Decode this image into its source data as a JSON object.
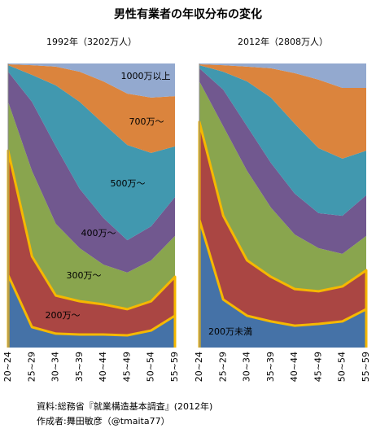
{
  "title": "男性有業者の年収分布の変化",
  "chart_data": [
    {
      "type": "area",
      "stacked": true,
      "title": "1992年（3202万人）",
      "categories": [
        "20~24",
        "25~29",
        "30~34",
        "35~39",
        "40~44",
        "45~49",
        "50~54",
        "55~59"
      ],
      "ylim": [
        0,
        100
      ],
      "series": [
        {
          "color": "#4572a7",
          "outline": "#f5b800",
          "values": [
            25.5,
            7.2,
            4.9,
            4.6,
            4.6,
            4.3,
            6.0,
            11.2
          ]
        },
        {
          "name": "200万～",
          "color": "#aa4643",
          "outline": "#f5b800",
          "values": [
            43.8,
            24.9,
            13.4,
            11.7,
            10.6,
            9.2,
            10.3,
            13.7
          ]
        },
        {
          "name": "300万～",
          "color": "#89a54e",
          "values": [
            17.2,
            30.1,
            25.3,
            18.7,
            14.0,
            12.9,
            14.4,
            14.4
          ]
        },
        {
          "name": "400万～",
          "color": "#71588f",
          "values": [
            10.6,
            24.3,
            27.2,
            20.9,
            16.4,
            11.4,
            12.0,
            13.7
          ]
        },
        {
          "name": "500万～",
          "color": "#4198af",
          "values": [
            2.3,
            9.5,
            21.5,
            30.6,
            33.2,
            33.5,
            25.8,
            17.8
          ]
        },
        {
          "name": "700万～",
          "color": "#db843d",
          "values": [
            0.3,
            3.4,
            6.6,
            10.6,
            14.9,
            18.1,
            19.5,
            17.7
          ]
        },
        {
          "name": "1000万以上",
          "color": "#93a9cf",
          "values": [
            0.3,
            0.6,
            1.1,
            2.9,
            6.3,
            10.6,
            12.0,
            11.5
          ]
        }
      ]
    },
    {
      "type": "area",
      "stacked": true,
      "title": "2012年（2808万人）",
      "categories": [
        "20~24",
        "25~29",
        "30~34",
        "35~39",
        "40~44",
        "45~49",
        "50~54",
        "55~59"
      ],
      "ylim": [
        0,
        100
      ],
      "series": [
        {
          "name": "200万未満",
          "color": "#4572a7",
          "outline": "#f5b800",
          "values": [
            45.0,
            16.9,
            11.2,
            9.2,
            7.7,
            8.3,
            9.2,
            13.5
          ]
        },
        {
          "color": "#aa4643",
          "outline": "#f5b800",
          "values": [
            34.4,
            29.5,
            19.5,
            15.7,
            12.9,
            11.5,
            12.3,
            13.7
          ]
        },
        {
          "color": "#89a54e",
          "values": [
            14.3,
            31.5,
            31.5,
            24.4,
            19.2,
            15.2,
            11.5,
            12.1
          ]
        },
        {
          "color": "#71588f",
          "values": [
            4.6,
            12.9,
            15.7,
            15.7,
            14.4,
            12.3,
            13.4,
            14.3
          ]
        },
        {
          "color": "#4198af",
          "values": [
            1.1,
            6.3,
            15.8,
            23.0,
            24.6,
            22.9,
            20.1,
            15.7
          ]
        },
        {
          "color": "#db843d",
          "values": [
            0.3,
            2.3,
            5.2,
            10.3,
            17.8,
            24.1,
            24.9,
            22.1
          ]
        },
        {
          "color": "#93a9cf",
          "values": [
            0.3,
            0.6,
            1.1,
            1.7,
            3.4,
            5.7,
            8.6,
            8.6
          ]
        }
      ]
    }
  ],
  "source": "資料:総務省『就業構造基本調査』(2012年)",
  "author": "作成者:舞田敏彦（@tmaita77）"
}
